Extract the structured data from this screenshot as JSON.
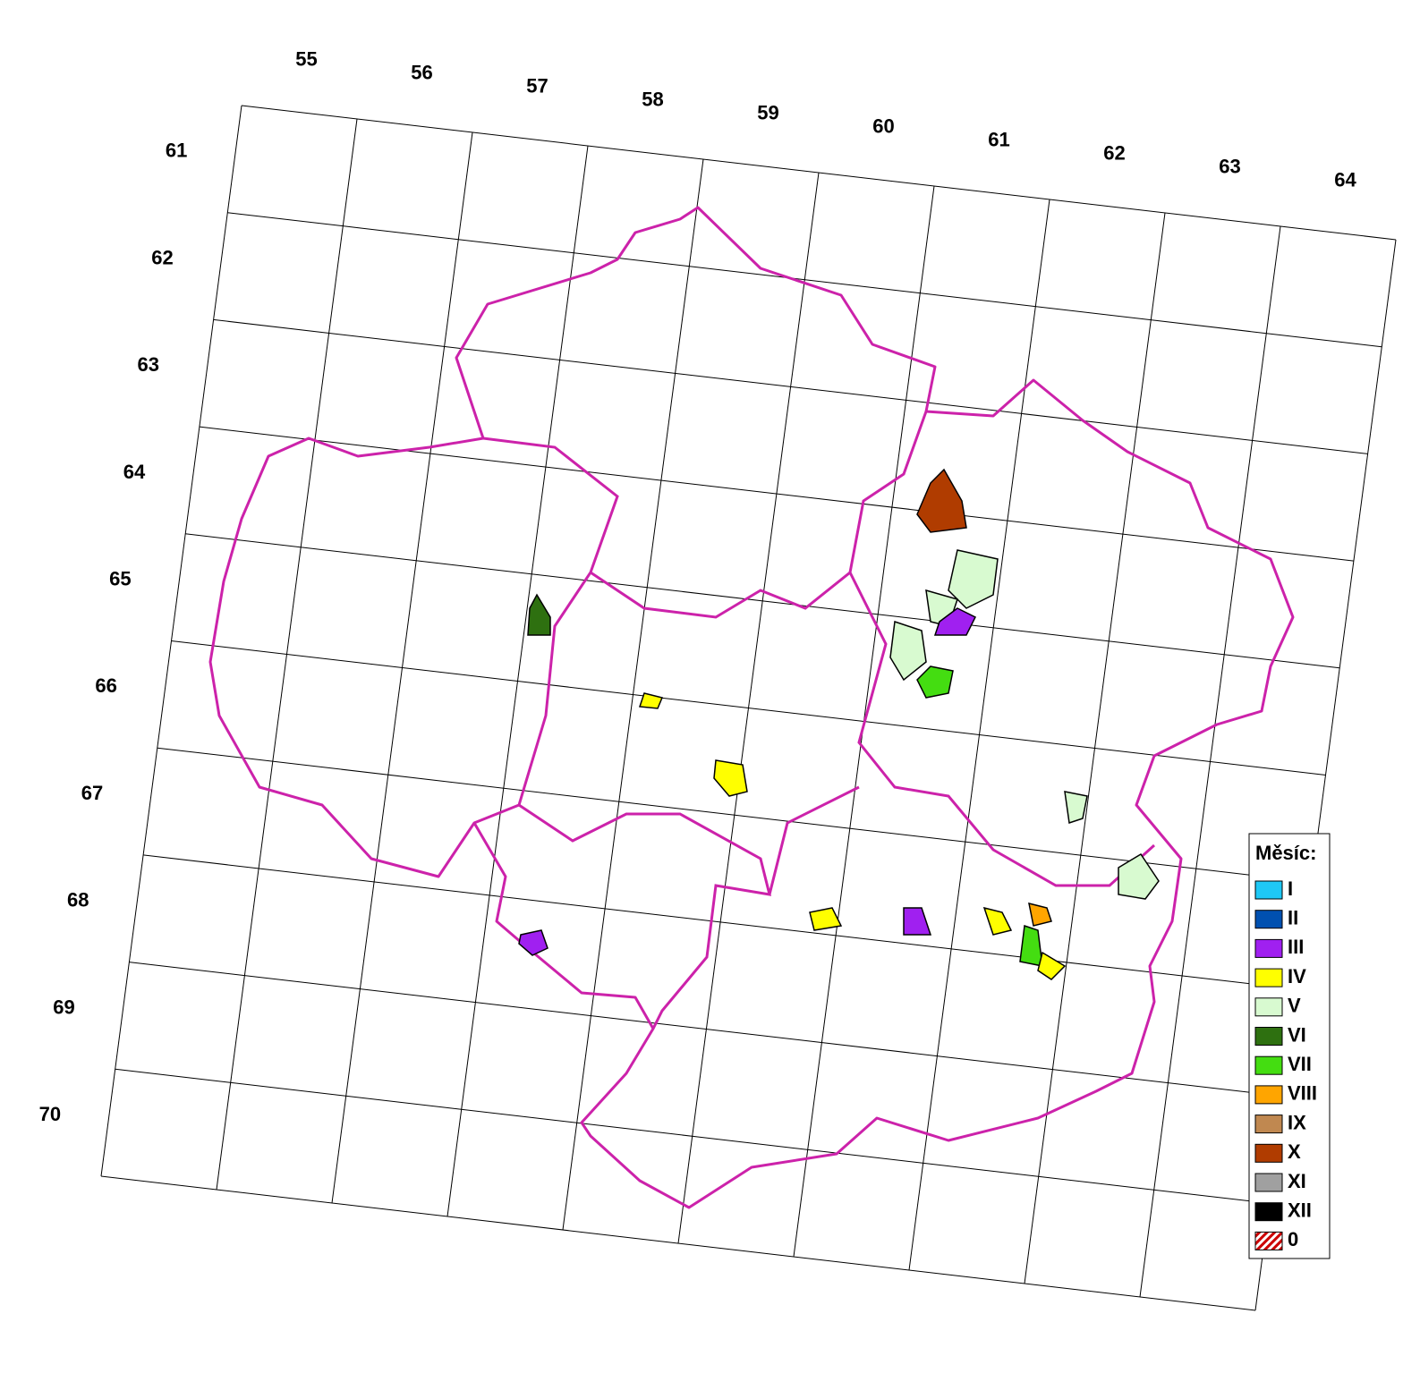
{
  "grid": {
    "columns": [
      "55",
      "56",
      "57",
      "58",
      "59",
      "60",
      "61",
      "62",
      "63",
      "64"
    ],
    "rows": [
      "61",
      "62",
      "63",
      "64",
      "65",
      "66",
      "67",
      "68",
      "69",
      "70"
    ]
  },
  "legend": {
    "title": "Měsíc:",
    "items": [
      {
        "label": "I",
        "color": "#1ec8f5"
      },
      {
        "label": "II",
        "color": "#0050b0"
      },
      {
        "label": "III",
        "color": "#a020f0"
      },
      {
        "label": "IV",
        "color": "#ffff00"
      },
      {
        "label": "V",
        "color": "#d8fad0"
      },
      {
        "label": "VI",
        "color": "#2e7010"
      },
      {
        "label": "VII",
        "color": "#44dd11"
      },
      {
        "label": "VIII",
        "color": "#ffa500"
      },
      {
        "label": "IX",
        "color": "#c08850"
      },
      {
        "label": "X",
        "color": "#b03c00"
      },
      {
        "label": "XI",
        "color": "#a0a0a0"
      },
      {
        "label": "XII",
        "color": "#000000"
      },
      {
        "label": "0",
        "color": "#cc0000",
        "hatched": true
      }
    ]
  }
}
